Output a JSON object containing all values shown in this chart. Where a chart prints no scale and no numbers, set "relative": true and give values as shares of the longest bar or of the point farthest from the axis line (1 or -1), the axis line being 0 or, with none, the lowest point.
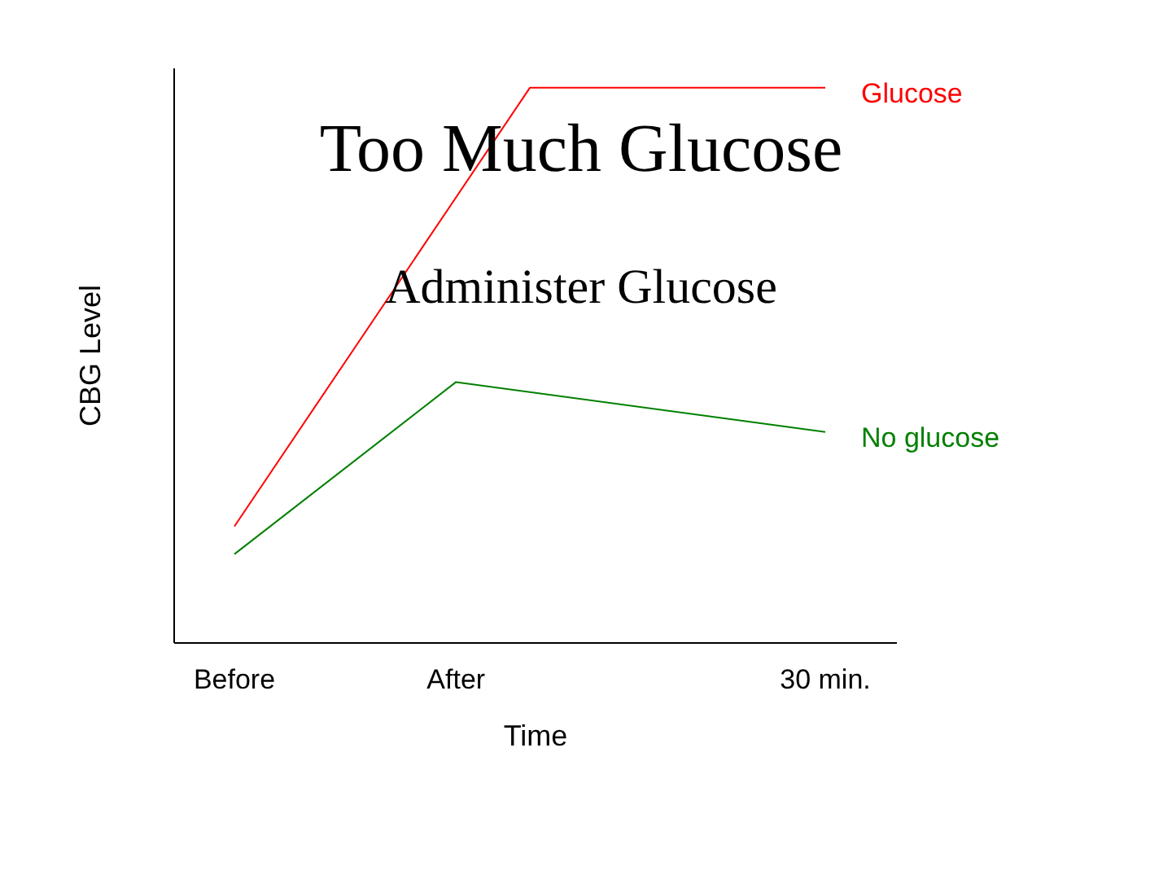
{
  "chart_data": {
    "type": "line",
    "title": "Too Much Glucose",
    "subtitle": "Administer Glucose",
    "xlabel": "Time",
    "ylabel": "CBG Level",
    "relative": true,
    "categories": [
      "Before",
      null,
      null,
      "After",
      null,
      null,
      null,
      null,
      "30 min."
    ],
    "series": [
      {
        "name": "Glucose",
        "color": "#ff0000",
        "values": [
          0.21,
          null,
          null,
          null,
          1,
          null,
          null,
          null,
          1
        ]
      },
      {
        "name": "No glucose",
        "color": "#008000",
        "values": [
          0.16,
          null,
          null,
          0.47,
          null,
          null,
          null,
          null,
          0.38
        ]
      }
    ],
    "marker": "none",
    "line_style": "solid"
  }
}
